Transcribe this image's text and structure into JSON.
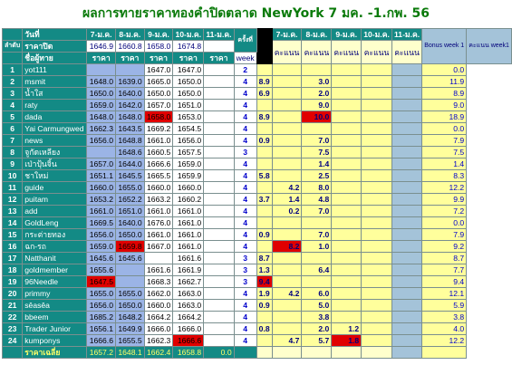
{
  "title": "ผลการทายราคาทองคำปิดตลาด NewYork 7 มค. -1.กพ. 56",
  "headers": {
    "day_label": "วันที่",
    "rank_label": "ลำดับ",
    "close_label": "ราคาปิด",
    "name_label": "ชื่อผู้ทาย",
    "price_label": "ราคา",
    "rounds_label": "ครั้งที่",
    "week_label": "week",
    "score_label": "คะแนน",
    "bonus_label": "Bonus week 1",
    "score_week1_label": "คะแนน week1",
    "dates": [
      "7-ม.ค.",
      "8-ม.ค.",
      "9-ม.ค.",
      "10-ม.ค.",
      "11-ม.ค."
    ],
    "close_prices": [
      "1646.9",
      "1660.8",
      "1658.0",
      "1674.8",
      ""
    ]
  },
  "rows": [
    {
      "rank": "1",
      "name": "yot111",
      "prices": [
        "",
        "",
        "1647.0",
        "1647.0",
        ""
      ],
      "week": "2",
      "scores": [
        "",
        "",
        "",
        "",
        ""
      ],
      "total": "0.0"
    },
    {
      "rank": "2",
      "name": "msmit",
      "prices": [
        "1648.0",
        "1639.0",
        "1665.0",
        "1650.0",
        ""
      ],
      "week": "4",
      "scores": [
        "8.9",
        "",
        "3.0",
        "",
        ""
      ],
      "total": "11.9"
    },
    {
      "rank": "3",
      "name": "น้ำใส",
      "prices": [
        "1650.0",
        "1640.0",
        "1650.0",
        "1650.0",
        ""
      ],
      "week": "4",
      "scores": [
        "6.9",
        "",
        "2.0",
        "",
        ""
      ],
      "total": "8.9"
    },
    {
      "rank": "4",
      "name": "raty",
      "prices": [
        "1659.0",
        "1642.0",
        "1657.0",
        "1651.0",
        ""
      ],
      "week": "4",
      "scores": [
        "",
        "",
        "9.0",
        "",
        ""
      ],
      "total": "9.0"
    },
    {
      "rank": "5",
      "name": "dada",
      "prices": [
        "1648.0",
        "1648.0",
        "1658.0",
        "1653.0",
        ""
      ],
      "week": "4",
      "scores": [
        "8.9",
        "",
        "10.0",
        "",
        ""
      ],
      "total": "18.9"
    },
    {
      "rank": "6",
      "name": "Yai Carmungwed",
      "prices": [
        "1662.3",
        "1643.5",
        "1669.2",
        "1654.5",
        ""
      ],
      "week": "4",
      "scores": [
        "",
        "",
        "",
        "",
        ""
      ],
      "total": "0.0"
    },
    {
      "rank": "7",
      "name": "news",
      "prices": [
        "1656.0",
        "1648.8",
        "1661.0",
        "1656.0",
        ""
      ],
      "week": "4",
      "scores": [
        "0.9",
        "",
        "7.0",
        "",
        ""
      ],
      "total": "7.9"
    },
    {
      "rank": "8",
      "name": "จูกัดเหลียง",
      "prices": [
        "",
        "1648.6",
        "1660.5",
        "1657.5",
        ""
      ],
      "week": "3",
      "scores": [
        "",
        "",
        "7.5",
        "",
        ""
      ],
      "total": "7.5"
    },
    {
      "rank": "9",
      "name": "เป่าปุ้นจิ้น",
      "prices": [
        "1657.0",
        "1644.0",
        "1666.6",
        "1659.0",
        ""
      ],
      "week": "4",
      "scores": [
        "",
        "",
        "1.4",
        "",
        ""
      ],
      "total": "1.4"
    },
    {
      "rank": "10",
      "name": "ชาใหม่",
      "prices": [
        "1651.1",
        "1645.5",
        "1665.5",
        "1659.9",
        ""
      ],
      "week": "4",
      "scores": [
        "5.8",
        "",
        "2.5",
        "",
        ""
      ],
      "total": "8.3"
    },
    {
      "rank": "11",
      "name": "guide",
      "prices": [
        "1660.0",
        "1655.0",
        "1660.0",
        "1660.0",
        ""
      ],
      "week": "4",
      "scores": [
        "",
        "4.2",
        "8.0",
        "",
        ""
      ],
      "total": "12.2"
    },
    {
      "rank": "12",
      "name": "puitam",
      "prices": [
        "1653.2",
        "1652.2",
        "1663.2",
        "1660.2",
        ""
      ],
      "week": "4",
      "scores": [
        "3.7",
        "1.4",
        "4.8",
        "",
        ""
      ],
      "total": "9.9"
    },
    {
      "rank": "13",
      "name": "add",
      "prices": [
        "1661.0",
        "1651.0",
        "1661.0",
        "1661.0",
        ""
      ],
      "week": "4",
      "scores": [
        "",
        "0.2",
        "7.0",
        "",
        ""
      ],
      "total": "7.2"
    },
    {
      "rank": "14",
      "name": "GoldLeng",
      "prices": [
        "1669.5",
        "1640.0",
        "1676.0",
        "1661.0",
        ""
      ],
      "week": "4",
      "scores": [
        "",
        "",
        "",
        "",
        ""
      ],
      "total": "0.0"
    },
    {
      "rank": "15",
      "name": "กระต่ายทอง",
      "prices": [
        "1656.0",
        "1650.0",
        "1661.0",
        "1661.0",
        ""
      ],
      "week": "4",
      "scores": [
        "0.9",
        "",
        "7.0",
        "",
        ""
      ],
      "total": "7.9"
    },
    {
      "rank": "16",
      "name": "ฉก-รถ",
      "prices": [
        "1659.0",
        "1659.8",
        "1667.0",
        "1661.0",
        ""
      ],
      "week": "4",
      "scores": [
        "",
        "8.2",
        "1.0",
        "",
        ""
      ],
      "total": "9.2"
    },
    {
      "rank": "17",
      "name": "Natthanit",
      "prices": [
        "1645.6",
        "1645.6",
        "",
        "1661.6",
        ""
      ],
      "week": "3",
      "scores": [
        "8.7",
        "",
        "",
        "",
        ""
      ],
      "total": "8.7"
    },
    {
      "rank": "18",
      "name": "goldmember",
      "prices": [
        "1655.6",
        "",
        "1661.6",
        "1661.9",
        ""
      ],
      "week": "3",
      "scores": [
        "1.3",
        "",
        "6.4",
        "",
        ""
      ],
      "total": "7.7"
    },
    {
      "rank": "19",
      "name": "96Needle",
      "prices": [
        "1647.5",
        "",
        "1668.3",
        "1662.7",
        ""
      ],
      "week": "3",
      "scores": [
        "9.4",
        "",
        "",
        "",
        ""
      ],
      "total": "9.4"
    },
    {
      "rank": "20",
      "name": "primmy",
      "prices": [
        "1655.0",
        "1655.0",
        "1662.0",
        "1663.0",
        ""
      ],
      "week": "4",
      "scores": [
        "1.9",
        "4.2",
        "6.0",
        "",
        ""
      ],
      "total": "12.1"
    },
    {
      "rank": "21",
      "name": "sêasêa",
      "prices": [
        "1656.0",
        "1650.0",
        "1660.0",
        "1663.0",
        ""
      ],
      "week": "4",
      "scores": [
        "0.9",
        "",
        "5.0",
        "",
        ""
      ],
      "total": "5.9"
    },
    {
      "rank": "22",
      "name": "bbeem",
      "prices": [
        "1685.2",
        "1648.2",
        "1664.2",
        "1664.2",
        ""
      ],
      "week": "4",
      "scores": [
        "",
        "",
        "3.8",
        "",
        ""
      ],
      "total": "3.8"
    },
    {
      "rank": "23",
      "name": "Trader Junior",
      "prices": [
        "1656.1",
        "1649.9",
        "1666.0",
        "1666.0",
        ""
      ],
      "week": "4",
      "scores": [
        "0.8",
        "",
        "2.0",
        "1.2",
        ""
      ],
      "total": "4.0"
    },
    {
      "rank": "24",
      "name": "kumponys",
      "prices": [
        "1666.6",
        "1655.5",
        "1662.3",
        "1666.6",
        ""
      ],
      "week": "4",
      "scores": [
        "",
        "4.7",
        "5.7",
        "1.8",
        ""
      ],
      "total": "12.2"
    }
  ],
  "footer": {
    "label": "ราคาเฉลี่ย",
    "averages": [
      "1657.2",
      "1648.1",
      "1662.4",
      "1658.8",
      "0.0"
    ]
  },
  "highlights": {
    "red_price_cells": [
      [
        5,
        2
      ],
      [
        16,
        1
      ],
      [
        19,
        0
      ],
      [
        24,
        3
      ]
    ],
    "red_score_cells": [
      [
        5,
        2
      ],
      [
        16,
        1
      ],
      [
        19,
        0
      ],
      [
        24,
        3
      ]
    ]
  },
  "colors": {
    "teal": "#138a85",
    "score_yellow": "#ffff9c",
    "price_blue": "#9bb4e6",
    "highlight_red": "#e00000",
    "title_green": "#0a7a0a",
    "score_text": "#000080",
    "total_blue": "#0000cc"
  }
}
